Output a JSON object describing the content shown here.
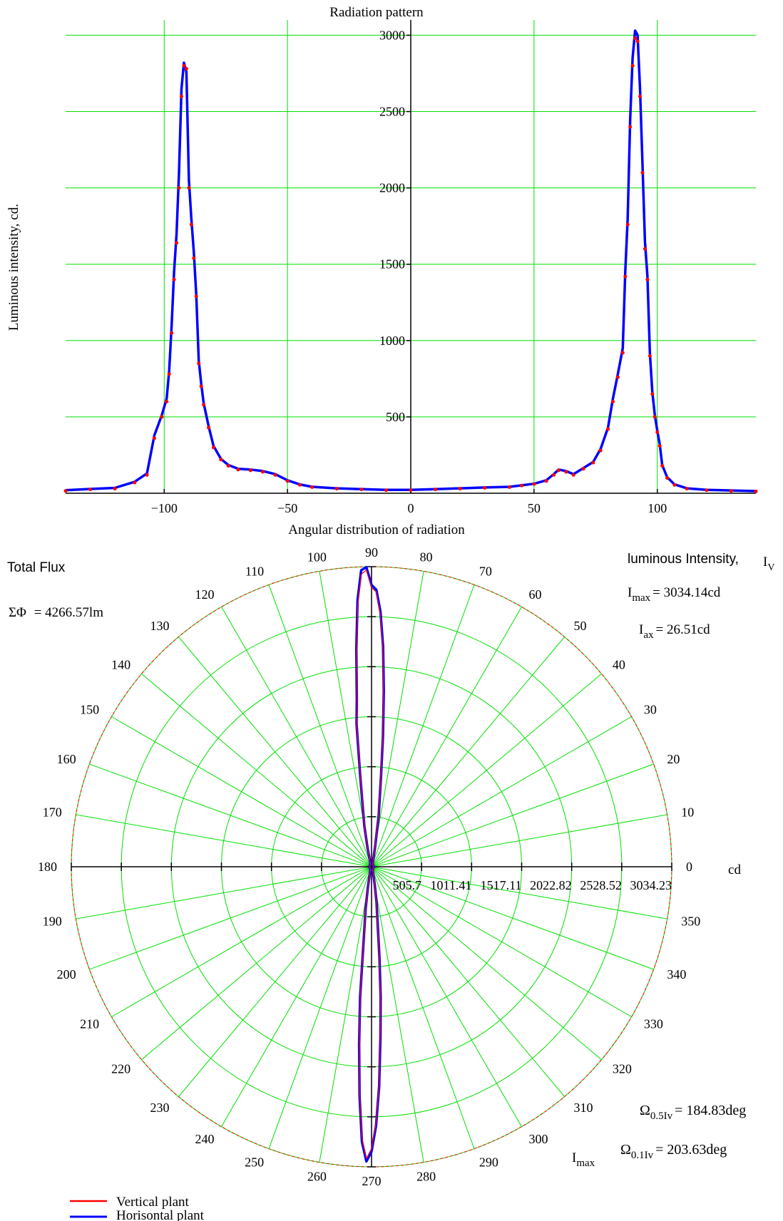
{
  "colors": {
    "grid": "#00e000",
    "axis": "#000000",
    "vertical": "#ff0000",
    "horizontal": "#0000ff"
  },
  "chart_data": [
    {
      "type": "line",
      "title": "Radiation pattern",
      "xlabel": "Angular distribution of radiation",
      "ylabel": "Luminous intensity, cd.",
      "xlim": [
        -140,
        140
      ],
      "ylim": [
        0,
        3100
      ],
      "xticks": [
        -100,
        -50,
        0,
        50,
        100
      ],
      "xtick_labels": [
        "−100",
        "−50",
        "0",
        "50",
        "100"
      ],
      "yticks": [
        500,
        1000,
        1500,
        2000,
        2500,
        3000
      ],
      "ytick_labels": [
        "500",
        "1000",
        "1500",
        "2000",
        "2500",
        "3000"
      ],
      "grid": true,
      "series": [
        {
          "name": "Vertical plant",
          "color": "#ff0000",
          "style": "points",
          "x": [
            -140,
            -130,
            -120,
            -112,
            -107,
            -104,
            -101,
            -99,
            -98,
            -97,
            -96,
            -95,
            -94,
            -93,
            -92,
            -91,
            -90,
            -89,
            -88,
            -87,
            -86,
            -85,
            -84,
            -82,
            -80,
            -77,
            -74,
            -70,
            -65,
            -60,
            -55,
            -50,
            -45,
            -40,
            -30,
            -20,
            -10,
            0,
            10,
            20,
            30,
            40,
            45,
            50,
            55,
            58,
            60,
            63,
            66,
            70,
            74,
            77,
            80,
            82,
            84,
            86,
            87,
            88,
            89,
            90,
            91,
            92,
            93,
            94,
            95,
            96,
            97,
            98,
            99,
            100,
            101,
            102,
            104,
            107,
            112,
            120,
            130,
            140
          ],
          "y": [
            15,
            25,
            30,
            70,
            120,
            360,
            500,
            600,
            780,
            1050,
            1400,
            1640,
            2000,
            2600,
            2800,
            2780,
            2000,
            1760,
            1540,
            1290,
            850,
            700,
            580,
            430,
            300,
            220,
            180,
            155,
            150,
            140,
            120,
            80,
            55,
            40,
            30,
            25,
            20,
            20,
            25,
            30,
            35,
            40,
            50,
            60,
            80,
            120,
            150,
            140,
            120,
            160,
            200,
            280,
            420,
            600,
            760,
            920,
            1420,
            1760,
            2400,
            2800,
            2980,
            2960,
            2600,
            2100,
            1600,
            1400,
            900,
            650,
            500,
            400,
            310,
            180,
            100,
            55,
            30,
            20,
            15,
            12
          ]
        },
        {
          "name": "Horisontal plant",
          "color": "#0000ff",
          "style": "line",
          "x": [
            -140,
            -130,
            -120,
            -112,
            -107,
            -104,
            -101,
            -99,
            -98,
            -97,
            -96,
            -95,
            -94,
            -93,
            -92,
            -91,
            -90,
            -89,
            -88,
            -87,
            -86,
            -85,
            -84,
            -82,
            -80,
            -77,
            -74,
            -70,
            -65,
            -60,
            -55,
            -50,
            -45,
            -40,
            -30,
            -20,
            -10,
            0,
            10,
            20,
            30,
            40,
            45,
            50,
            55,
            58,
            60,
            63,
            66,
            70,
            74,
            77,
            80,
            82,
            84,
            86,
            87,
            88,
            89,
            90,
            91,
            92,
            93,
            94,
            95,
            96,
            97,
            98,
            99,
            100,
            101,
            102,
            104,
            107,
            112,
            120,
            130,
            140
          ],
          "y": [
            20,
            28,
            35,
            75,
            130,
            380,
            510,
            620,
            800,
            1100,
            1450,
            1700,
            2100,
            2650,
            2820,
            2760,
            2050,
            1800,
            1580,
            1300,
            870,
            720,
            590,
            440,
            310,
            225,
            185,
            160,
            155,
            145,
            125,
            85,
            58,
            42,
            32,
            27,
            22,
            22,
            27,
            32,
            38,
            42,
            52,
            62,
            85,
            125,
            155,
            145,
            125,
            165,
            205,
            290,
            430,
            620,
            780,
            950,
            1450,
            1800,
            2450,
            2850,
            3030,
            3000,
            2650,
            2150,
            1650,
            1420,
            920,
            660,
            510,
            410,
            320,
            185,
            105,
            58,
            32,
            22,
            18,
            14
          ]
        }
      ]
    },
    {
      "type": "polar",
      "title": "",
      "radial_ticks": [
        "505.7",
        "1011.41",
        "1517.11",
        "2022.82",
        "2528.52",
        "3034.23"
      ],
      "radial_unit": "cd",
      "angular_ticks": [
        "0",
        "10",
        "20",
        "30",
        "40",
        "50",
        "60",
        "70",
        "80",
        "90",
        "100",
        "110",
        "120",
        "130",
        "140",
        "150",
        "160",
        "170",
        "180",
        "190",
        "200",
        "210",
        "220",
        "230",
        "240",
        "250",
        "260",
        "270",
        "280",
        "290",
        "300",
        "310",
        "320",
        "330",
        "340",
        "350"
      ],
      "rmax": 3034.23,
      "series": [
        {
          "name": "Vertical plant",
          "color": "#ff0000",
          "angles": [
            90,
            91,
            92,
            93,
            94,
            95,
            96,
            97,
            98,
            100,
            102,
            105,
            110,
            180,
            250,
            255,
            260,
            262,
            264,
            265,
            266,
            267,
            268,
            269,
            270,
            271,
            272,
            273,
            274,
            275,
            276,
            278,
            280,
            285,
            290,
            360,
            70,
            75,
            80,
            82,
            84,
            85,
            86,
            87,
            88,
            89
          ],
          "values": [
            2820,
            3000,
            2960,
            2650,
            2150,
            1650,
            1420,
            920,
            660,
            410,
            185,
            60,
            30,
            20,
            30,
            60,
            200,
            420,
            760,
            1300,
            1780,
            2300,
            2750,
            2950,
            2850,
            2600,
            2200,
            1700,
            1300,
            900,
            600,
            350,
            180,
            60,
            30,
            22,
            30,
            60,
            200,
            500,
            900,
            1300,
            1750,
            2200,
            2550,
            2780
          ]
        },
        {
          "name": "Horisontal plant",
          "color": "#0000ff",
          "angles": [
            90,
            91,
            92,
            93,
            94,
            95,
            96,
            97,
            98,
            100,
            102,
            105,
            110,
            180,
            250,
            255,
            260,
            262,
            264,
            265,
            266,
            267,
            268,
            269,
            270,
            271,
            272,
            273,
            274,
            275,
            276,
            278,
            280,
            285,
            290,
            360,
            70,
            75,
            80,
            82,
            84,
            85,
            86,
            87,
            88,
            89
          ],
          "values": [
            2850,
            3030,
            3000,
            2700,
            2200,
            1700,
            1450,
            950,
            680,
            420,
            190,
            62,
            32,
            22,
            32,
            62,
            210,
            430,
            780,
            1320,
            1800,
            2320,
            2780,
            2980,
            2880,
            2620,
            2220,
            1720,
            1320,
            920,
            610,
            360,
            185,
            62,
            32,
            24,
            32,
            62,
            210,
            520,
            920,
            1320,
            1780,
            2230,
            2580,
            2800
          ]
        }
      ]
    }
  ],
  "annotations": {
    "total_flux_label": "Total Flux",
    "total_flux_prefix": "ΣΦ",
    "total_flux_value": "= 4266.57lm",
    "luminous_label": "luminous Intensity,",
    "iv_main": "I",
    "iv_sub": "V",
    "imax_main": "I",
    "imax_sub": "max",
    "imax_value": "= 3034.14cd",
    "iax_main": "I",
    "iax_sub": "ax",
    "iax_value": "= 26.51cd",
    "omega05_main": "Ω",
    "omega05_sub": "0.5Iv",
    "omega05_value": "= 184.83deg",
    "omega01_main": "Ω",
    "omega01_sub": "0.1Iv",
    "omega01_value": "= 203.63deg",
    "imax_marker_main": "I",
    "imax_marker_sub": "max"
  },
  "legend": {
    "vertical": "Vertical plant",
    "horizontal": "Horisontal plant"
  }
}
